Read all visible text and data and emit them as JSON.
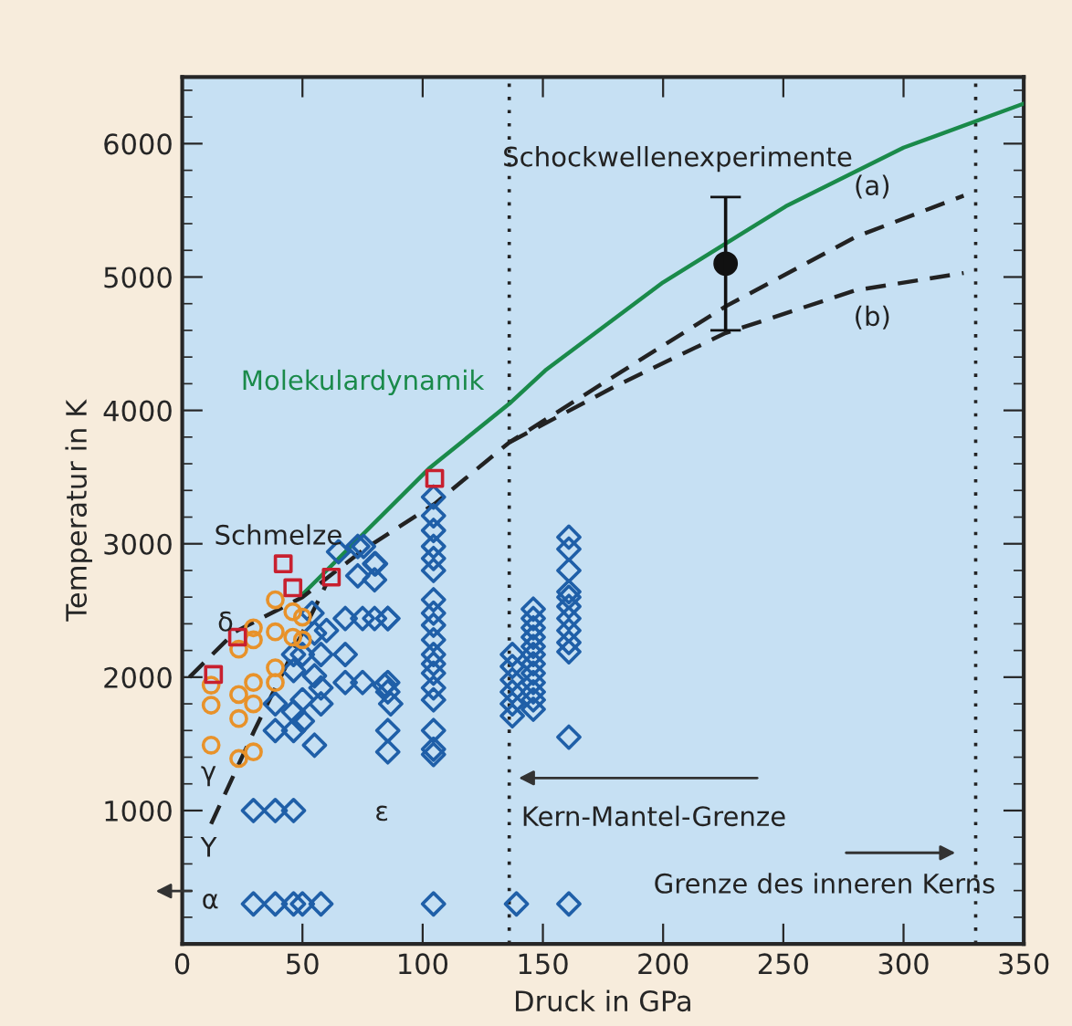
{
  "chart_data": {
    "type": "scatter",
    "xlabel": "Druck in GPa",
    "ylabel": "Temperatur in K",
    "xlim": [
      0,
      350
    ],
    "ylim": [
      0,
      6500
    ],
    "xticks": [
      0,
      50,
      100,
      150,
      200,
      250,
      300,
      350
    ],
    "yticks": [
      1000,
      2000,
      3000,
      4000,
      5000,
      6000
    ],
    "grid": false,
    "legend": false,
    "series": [
      {
        "marker": "diamond",
        "color": "#1f5fa8",
        "x": [
          29.6,
          38.7,
          46.3,
          50,
          57.7,
          104.5,
          139,
          160.8,
          29.6,
          38.7,
          46.3,
          38.7,
          46.3,
          50,
          55,
          38.7,
          46.3,
          50,
          55,
          57.7,
          46.3,
          50,
          57.7,
          55,
          46.3,
          54,
          60,
          67.8,
          75,
          80,
          85.5,
          67.8,
          67.8,
          75,
          85.5,
          65,
          73,
          80,
          73,
          80,
          57.7,
          75.4,
          80.4,
          84.2,
          85.5,
          86.7,
          85.5,
          85.5,
          85.5,
          104.5,
          104.5,
          104.5,
          104.5,
          104.5,
          104.5,
          104.5,
          104.5,
          104.5,
          104.5,
          104.5,
          104.5,
          104.5,
          104.5,
          104.5,
          104.5,
          104.5,
          104.5,
          137.3,
          137.3,
          137.3,
          137.3,
          137.3,
          137.3,
          146,
          146,
          146,
          146,
          146,
          146,
          146,
          146,
          146,
          146,
          146,
          146,
          160.8,
          160.8,
          160.8,
          160.8,
          160.8,
          160.8,
          160.8,
          160.8,
          160.8,
          160.8,
          160.8
        ],
        "values": [
          300,
          300,
          300,
          300,
          300,
          300,
          300,
          300,
          1000,
          1000,
          1000,
          1800,
          1740,
          1670,
          1490,
          1600,
          1600,
          1830,
          2010,
          1920,
          2050,
          2170,
          2170,
          2330,
          2170,
          2480,
          2350,
          2440,
          2440,
          2440,
          2440,
          2170,
          1960,
          1960,
          1960,
          2940,
          2980,
          2850,
          2760,
          2730,
          1800,
          2980,
          2850,
          1940,
          1890,
          1800,
          1600,
          1440,
          2440,
          3350,
          3210,
          3100,
          2980,
          2890,
          2800,
          2580,
          2480,
          2390,
          2280,
          2170,
          2100,
          2030,
          1920,
          1830,
          1600,
          1460,
          1420,
          2170,
          2080,
          1980,
          1890,
          1800,
          1710,
          2510,
          2440,
          2370,
          2300,
          2230,
          2170,
          2100,
          2030,
          1960,
          1890,
          1830,
          1760,
          3050,
          2960,
          2800,
          2640,
          2600,
          2530,
          2440,
          2350,
          2260,
          2190,
          1550
        ]
      },
      {
        "marker": "circle",
        "color": "#e8922a",
        "x": [
          38.7,
          29.6,
          23.5,
          38.7,
          46,
          50,
          46,
          29.6,
          12,
          12,
          23.5,
          29.6,
          38.7,
          38.7,
          23.5,
          29.6,
          12,
          23.5,
          29.6,
          50
        ],
        "values": [
          2580,
          2370,
          2210,
          2340,
          2490,
          2450,
          2300,
          2280,
          1940,
          1790,
          1870,
          1960,
          2070,
          1960,
          1690,
          1800,
          1490,
          1390,
          1440,
          2280
        ]
      },
      {
        "marker": "square",
        "color": "#c8202f",
        "x": [
          13,
          23,
          42,
          46,
          62,
          105
        ],
        "values": [
          2020,
          2300,
          2850,
          2670,
          2750,
          3490
        ]
      },
      {
        "type": "line",
        "color": "#1a8a4a",
        "line_style": "solid",
        "x": [
          50,
          103,
          136,
          151,
          200,
          251,
          300,
          350
        ],
        "values": [
          2620,
          3570,
          4050,
          4300,
          4960,
          5530,
          5970,
          6300
        ]
      },
      {
        "type": "line",
        "color": "#222222",
        "line_style": "dashed",
        "x": [
          3,
          22,
          50,
          75,
          105,
          136,
          180,
          226,
          280,
          325
        ],
        "values": [
          2000,
          2340,
          2600,
          2950,
          3300,
          3760,
          4260,
          4780,
          5300,
          5610
        ]
      },
      {
        "type": "line",
        "color": "#222222",
        "line_style": "dashed",
        "x": [
          136,
          180,
          226,
          280,
          325
        ],
        "values": [
          3760,
          4180,
          4580,
          4900,
          5030
        ]
      },
      {
        "type": "line",
        "color": "#222222",
        "line_style": "dashed",
        "x": [
          12,
          30,
          48,
          60
        ],
        "values": [
          900,
          1600,
          2260,
          2700
        ]
      },
      {
        "marker": "circle",
        "color": "#111111",
        "x": [
          226
        ],
        "values": [
          5100
        ],
        "errors": [
          [
            4600,
            5600
          ]
        ]
      }
    ],
    "ref_lines": [
      {
        "axis": "x",
        "value": 136,
        "line_style": "dotted",
        "color": "#222222"
      },
      {
        "axis": "x",
        "value": 330,
        "line_style": "dotted",
        "color": "#222222"
      }
    ],
    "annotations": [
      "Schmelze",
      "δ",
      "γ",
      "Y",
      "α",
      "ε",
      "Kern-Mantel-Grenze",
      "Grenze des inneren Kerns",
      "Schockwellenexperimente",
      "Molekulardynamik",
      "(a)",
      "(b)"
    ]
  }
}
